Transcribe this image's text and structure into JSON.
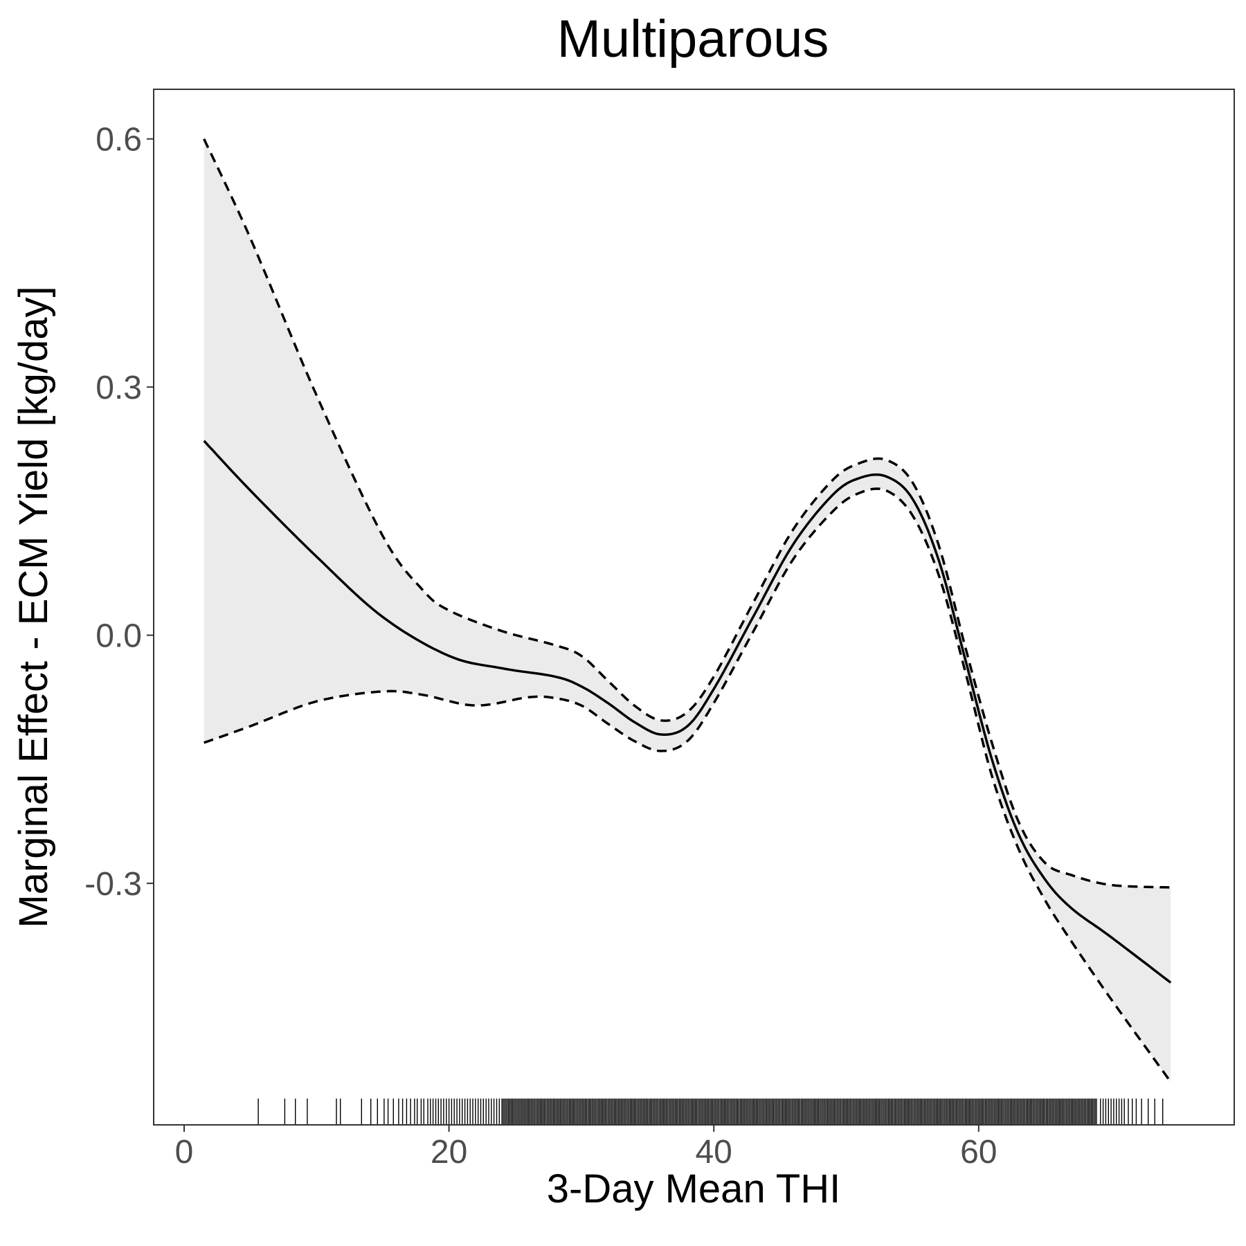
{
  "chart_data": {
    "type": "line",
    "title": "Multiparous",
    "xlabel": "3-Day Mean THI",
    "ylabel": "Marginal Effect - ECM Yield [kg/day]",
    "xlim": [
      -2.3,
      79.3
    ],
    "ylim": [
      -0.592,
      0.66
    ],
    "x_ticks": [
      0,
      20,
      40,
      60
    ],
    "x_tick_labels": [
      "0",
      "20",
      "40",
      "60"
    ],
    "y_ticks": [
      -0.3,
      0.0,
      0.3,
      0.6
    ],
    "y_tick_labels": [
      "-0.3",
      "0.0",
      "0.3",
      "0.6"
    ],
    "grid": false,
    "legend": "none",
    "colors": {
      "line": "#000000",
      "band": "#ebebeb",
      "text": "#000000",
      "tick_text": "#4d4d4d"
    },
    "series": [
      {
        "role": "estimate",
        "style": "solid",
        "x": [
          1.5,
          5,
          10,
          15,
          20,
          24,
          28,
          30,
          32,
          34,
          36,
          38,
          40,
          43,
          46,
          49,
          51,
          53,
          55,
          57,
          59,
          61,
          63,
          65,
          67,
          70,
          74.5
        ],
        "y": [
          0.235,
          0.175,
          0.095,
          0.022,
          -0.025,
          -0.04,
          -0.05,
          -0.062,
          -0.082,
          -0.105,
          -0.12,
          -0.11,
          -0.065,
          0.023,
          0.11,
          0.17,
          0.19,
          0.192,
          0.165,
          0.09,
          -0.03,
          -0.15,
          -0.24,
          -0.295,
          -0.33,
          -0.365,
          -0.42
        ]
      },
      {
        "role": "upper_bound",
        "style": "dashed",
        "x": [
          1.5,
          5,
          10,
          15,
          18,
          20,
          24,
          28,
          30,
          32,
          34,
          36,
          38,
          40,
          43,
          46,
          49,
          51,
          53,
          55,
          57,
          59,
          61,
          63,
          65,
          67,
          70,
          74.5
        ],
        "y": [
          0.6,
          0.48,
          0.29,
          0.12,
          0.055,
          0.03,
          0.005,
          -0.012,
          -0.025,
          -0.055,
          -0.085,
          -0.103,
          -0.093,
          -0.05,
          0.04,
          0.128,
          0.188,
          0.208,
          0.212,
          0.185,
          0.108,
          -0.015,
          -0.13,
          -0.225,
          -0.275,
          -0.29,
          -0.302,
          -0.305
        ]
      },
      {
        "role": "lower_bound",
        "style": "dashed",
        "x": [
          1.5,
          5,
          10,
          15,
          18,
          22,
          26,
          28,
          30,
          32,
          34,
          36,
          38,
          40,
          43,
          46,
          49,
          51,
          53,
          55,
          57,
          59,
          61,
          63,
          65,
          67,
          70,
          74.5
        ],
        "y": [
          -0.13,
          -0.11,
          -0.08,
          -0.068,
          -0.072,
          -0.085,
          -0.075,
          -0.076,
          -0.085,
          -0.107,
          -0.128,
          -0.14,
          -0.128,
          -0.082,
          0.005,
          0.092,
          0.15,
          0.172,
          0.175,
          0.145,
          0.072,
          -0.045,
          -0.17,
          -0.258,
          -0.32,
          -0.37,
          -0.44,
          -0.54
        ]
      }
    ],
    "rug": {
      "sparse_x": [
        5.6,
        7.6,
        8.4,
        9.3,
        11.5,
        11.8,
        13.4,
        14.1,
        14.6,
        15.1,
        15.4,
        15.8,
        16.2,
        16.5,
        16.8,
        17.1,
        17.4,
        17.6,
        17.9,
        18.1,
        18.4,
        18.6,
        18.8,
        19.0,
        19.2,
        19.4,
        19.6,
        19.8,
        20.0,
        20.2,
        20.4,
        20.6,
        20.8,
        21.0,
        21.2,
        21.4,
        21.6,
        21.8,
        22.0,
        22.2,
        22.4,
        22.6,
        22.8,
        23.0,
        23.2,
        23.4,
        23.6,
        23.8
      ],
      "dense_range": [
        24.0,
        69.0
      ],
      "sparse_x_high": [
        69.2,
        69.4,
        69.6,
        69.8,
        70.0,
        70.2,
        70.4,
        70.6,
        70.8,
        71.0,
        71.3,
        71.6,
        71.9,
        72.3,
        72.8,
        73.3,
        73.9
      ]
    }
  }
}
